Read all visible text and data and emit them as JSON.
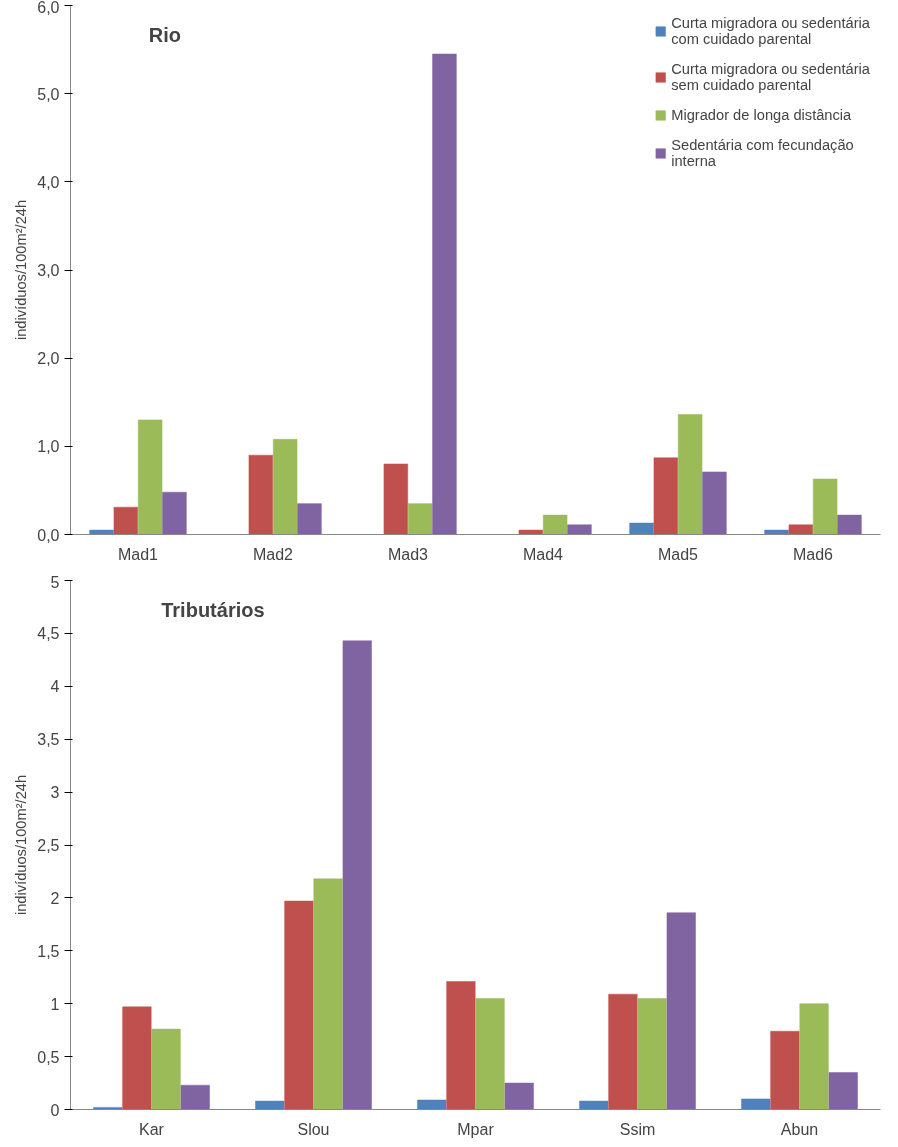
{
  "chart_data": [
    {
      "type": "bar",
      "title": "Rio",
      "ylabel": "indivíduos/100m²/24h",
      "categories": [
        "Mad1",
        "Mad2",
        "Mad3",
        "Mad4",
        "Mad5",
        "Mad6"
      ],
      "series": [
        {
          "name": "Curta migradora ou sedentária com cuidado parental",
          "color": "#4f81bd",
          "values": [
            0.05,
            0,
            0,
            0,
            0.13,
            0.05
          ]
        },
        {
          "name": "Curta migradora ou sedentária sem cuidado parental",
          "color": "#c0504d",
          "values": [
            0.31,
            0.9,
            0.8,
            0.05,
            0.87,
            0.11
          ]
        },
        {
          "name": "Migrador de longa distância",
          "color": "#9bbb59",
          "values": [
            1.3,
            1.08,
            0.35,
            0.22,
            1.36,
            0.63
          ]
        },
        {
          "name": "Sedentária com fecundação interna",
          "color": "#8064a2",
          "values": [
            0.48,
            0.35,
            5.45,
            0.11,
            0.71,
            0.22
          ]
        }
      ],
      "ylim": [
        0,
        6
      ],
      "yticks": [
        {
          "value": 0,
          "label": "0,0"
        },
        {
          "value": 1,
          "label": "1,0"
        },
        {
          "value": 2,
          "label": "2,0"
        },
        {
          "value": 3,
          "label": "3,0"
        },
        {
          "value": 4,
          "label": "4,0"
        },
        {
          "value": 5,
          "label": "5,0"
        },
        {
          "value": 6,
          "label": "6,0"
        }
      ],
      "grid": false,
      "legend": "top right"
    },
    {
      "type": "bar",
      "title": "Tributários",
      "ylabel": "indivíduos/100m²/24h",
      "categories": [
        "Kar",
        "Slou",
        "Mpar",
        "Ssim",
        "Abun"
      ],
      "series": [
        {
          "color": "#4f81bd",
          "values": [
            0.02,
            0.08,
            0.09,
            0.08,
            0.1
          ]
        },
        {
          "color": "#c0504d",
          "values": [
            0.97,
            1.97,
            1.21,
            1.09,
            0.74
          ]
        },
        {
          "color": "#9bbb59",
          "values": [
            0.76,
            2.18,
            1.05,
            1.05,
            1.0
          ]
        },
        {
          "color": "#8064a2",
          "values": [
            0.23,
            4.43,
            0.25,
            1.86,
            0.35
          ]
        }
      ],
      "ylim": [
        0,
        5
      ],
      "yticks": [
        0,
        {
          "value": 0.5,
          "label": "0,5"
        },
        1,
        {
          "value": 1.5,
          "label": "1,5"
        },
        2,
        {
          "value": 2.5,
          "label": "2,5"
        },
        3,
        {
          "value": 3.5,
          "label": "3,5"
        },
        4,
        {
          "value": 4.5,
          "label": "4,5"
        },
        5
      ],
      "grid": false,
      "legend": false
    }
  ]
}
